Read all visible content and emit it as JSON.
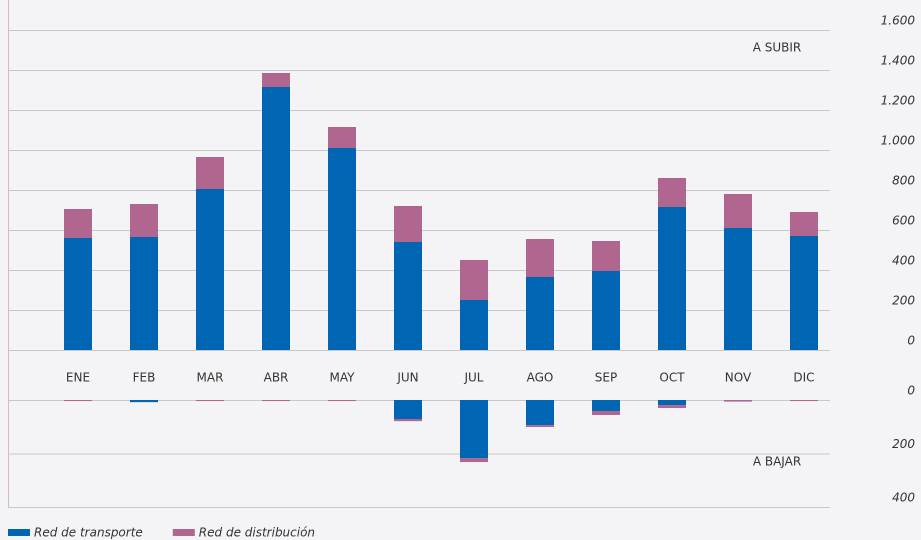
{
  "chart_data": [
    {
      "type": "bar",
      "stacked": true,
      "annotation": "A SUBIR",
      "categories": [
        "ENE",
        "FEB",
        "MAR",
        "ABR",
        "MAY",
        "JUN",
        "JUL",
        "AGO",
        "SEP",
        "OCT",
        "NOV",
        "DIC"
      ],
      "series": [
        {
          "name": "Red de transporte",
          "color": "#0066b3",
          "values": [
            560,
            565,
            805,
            1315,
            1010,
            540,
            250,
            365,
            395,
            715,
            610,
            570
          ]
        },
        {
          "name": "Red de distribución",
          "color": "#b0668f",
          "values": [
            145,
            165,
            160,
            70,
            105,
            180,
            200,
            190,
            150,
            145,
            170,
            120
          ]
        }
      ],
      "ylim": [
        0,
        1600
      ],
      "yticks": [
        0,
        200,
        400,
        600,
        800,
        {
          "value": 1000,
          "label": "1.000"
        },
        {
          "value": 1200,
          "label": "1.200"
        },
        {
          "value": 1400,
          "label": "1.400"
        },
        {
          "value": 1600,
          "label": "1.600"
        }
      ],
      "grid": true
    },
    {
      "type": "bar",
      "stacked": true,
      "inverted": true,
      "annotation": "A BAJAR",
      "series": [
        {
          "color": "#0066b3",
          "values": [
            0,
            8,
            0,
            0,
            0,
            71,
            218,
            94,
            41,
            19,
            0,
            0
          ]
        },
        {
          "color": "#b0668f",
          "values": [
            4,
            0,
            4,
            4,
            4,
            8,
            14,
            7,
            15,
            11,
            6,
            4
          ]
        }
      ],
      "ylim": [
        0,
        400
      ],
      "yticks": [
        0,
        200,
        400
      ],
      "grid": true
    }
  ]
}
